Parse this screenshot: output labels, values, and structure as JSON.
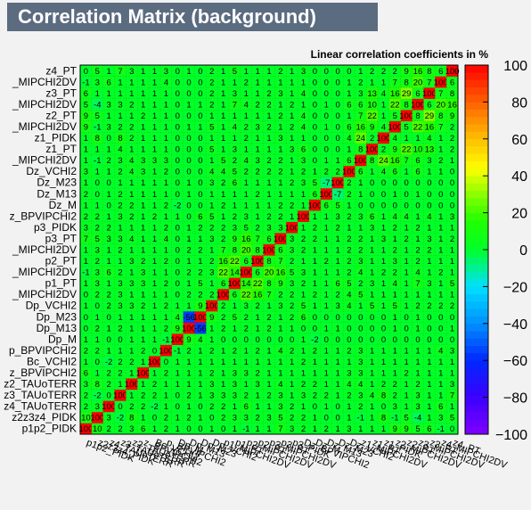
{
  "chart_data": {
    "type": "heatmap",
    "title": "Correlation Matrix (background)",
    "subtitle": "Linear correlation coefficients in %",
    "variables": [
      "p1p2_PIDK",
      "z2z3z4_PIDK",
      "z4_TAUoTERR",
      "z3_TAUoTERR",
      "z2_TAUoTERR",
      "z_BPVIPCHI2",
      "Bc_VCHI2",
      "p_BPVIPCHI2",
      "Dp_M",
      "Dp_M13",
      "Dp_M23",
      "Dp_VCHI2",
      "_MIPCHI2DV",
      "p1_PT",
      "_MIPCHI2DV",
      "p2_PT",
      "_MIPCHI2DV",
      "p3_PT",
      "p3_PIDK",
      "z_BPVIPCHI2",
      "Dz_M",
      "Dz_M13",
      "Dz_M23",
      "Dz_VCHI2",
      "_MIPCHI2DV",
      "z1_PT",
      "z1_PIDK",
      "_MIPCHI2DV",
      "z2_PT",
      "_MIPCHI2DV",
      "z3_PT",
      "_MIPCHI2DV",
      "z4_PT"
    ],
    "xlabels": [
      "p1p2_PIDK",
      "z2z3z4_PIDK",
      "z4_TAUoTERR",
      "z3_TAUoTERR",
      "z2_TAUoTERR",
      "z_BPVIPCHI2",
      "Bc_VCHI2",
      "p_BPVIPCHI2",
      "Dp_M",
      "Dp_M13",
      "Dp_M23",
      "Dp_VCHI2",
      "p1_MIPCHI2DV",
      "p1_PT",
      "p2_MIPCHI2DV",
      "p2_PT",
      "p3_MIPCHI2DV",
      "p3_PT",
      "p3_PIDK",
      "Dz_BPVIPCHI2",
      "Dz_M",
      "Dz_M13",
      "Dz_M23",
      "Dz_VCHI2",
      "z1_MIPCHI2DV",
      "z1_PT",
      "z1_PIDK",
      "z2_MIPCHI2DV",
      "z2_PT",
      "z3_MIPCHI2DV",
      "z3_PT",
      "z4_MIPCHI2DV",
      "z4_PT"
    ],
    "zlim": [
      -100,
      100
    ],
    "ztick_labels": [
      "100",
      "80",
      "60",
      "40",
      "20",
      "0",
      "−20",
      "−40",
      "−60",
      "−80",
      "−100"
    ],
    "matrix": [
      [
        100,
        10,
        2,
        2,
        3,
        6,
        1,
        2,
        1,
        0,
        0,
        1,
        0,
        1,
        -1,
        1,
        1,
        7,
        3,
        2,
        1,
        2,
        1,
        3,
        1,
        1,
        1,
        9,
        9,
        5,
        6,
        -1,
        0
      ],
      [
        10,
        100,
        3,
        -2,
        8,
        1,
        0,
        2,
        1,
        2,
        1,
        0,
        2,
        3,
        3,
        2,
        3,
        5,
        2,
        2,
        1,
        0,
        0,
        1,
        -1,
        1,
        8,
        -1,
        5,
        -4,
        1,
        3,
        5
      ],
      [
        2,
        3,
        100,
        0,
        2,
        2,
        -2,
        1,
        0,
        1,
        0,
        2,
        2,
        1,
        6,
        1,
        1,
        3,
        2,
        1,
        0,
        1,
        0,
        1,
        2,
        1,
        0,
        3,
        1,
        3,
        1,
        6,
        1
      ],
      [
        2,
        -2,
        0,
        100,
        1,
        2,
        2,
        1,
        0,
        2,
        1,
        3,
        3,
        3,
        2,
        1,
        2,
        3,
        1,
        3,
        2,
        2,
        1,
        2,
        3,
        4,
        8,
        2,
        1,
        3,
        1,
        1,
        7
      ],
      [
        3,
        8,
        2,
        1,
        100,
        1,
        2,
        1,
        1,
        1,
        1,
        3,
        1,
        3,
        1,
        3,
        1,
        4,
        1,
        2,
        2,
        1,
        1,
        4,
        4,
        1,
        2,
        2,
        1,
        2,
        1,
        1,
        3
      ],
      [
        6,
        1,
        2,
        2,
        1,
        100,
        1,
        2,
        1,
        1,
        1,
        2,
        1,
        3,
        3,
        2,
        1,
        1,
        1,
        1,
        1,
        1,
        1,
        3,
        3,
        1,
        1,
        1,
        2,
        1,
        1,
        1,
        1
      ],
      [
        1,
        0,
        -2,
        2,
        2,
        1,
        100,
        0,
        1,
        1,
        1,
        1,
        1,
        1,
        1,
        1,
        1,
        1,
        1,
        2,
        1,
        1,
        1,
        1,
        3,
        1,
        1,
        1,
        1,
        1,
        1,
        1,
        1
      ],
      [
        2,
        2,
        1,
        1,
        1,
        2,
        0,
        100,
        -1,
        2,
        1,
        2,
        1,
        2,
        1,
        2,
        1,
        4,
        2,
        1,
        2,
        1,
        1,
        2,
        3,
        1,
        1,
        1,
        1,
        1,
        1,
        4,
        3
      ],
      [
        1,
        1,
        0,
        0,
        1,
        1,
        1,
        -1,
        100,
        9,
        4,
        1,
        0,
        0,
        0,
        0,
        0,
        0,
        0,
        1,
        -2,
        0,
        0,
        0,
        0,
        0,
        0,
        0,
        0,
        0,
        0,
        0,
        0
      ],
      [
        0,
        2,
        1,
        2,
        1,
        1,
        1,
        2,
        9,
        100,
        -56,
        1,
        2,
        1,
        2,
        1,
        2,
        1,
        1,
        0,
        0,
        1,
        1,
        0,
        0,
        0,
        0,
        1,
        0,
        1,
        0,
        0,
        1
      ],
      [
        0,
        1,
        0,
        1,
        1,
        1,
        1,
        1,
        4,
        -56,
        100,
        9,
        2,
        5,
        2,
        1,
        2,
        1,
        2,
        6,
        0,
        0,
        0,
        0,
        0,
        0,
        0,
        1,
        0,
        1,
        0,
        0,
        0
      ],
      [
        1,
        0,
        2,
        3,
        3,
        2,
        1,
        2,
        1,
        1,
        9,
        100,
        2,
        1,
        3,
        2,
        1,
        3,
        2,
        5,
        1,
        1,
        3,
        4,
        1,
        5,
        1,
        5,
        1,
        2,
        2,
        2,
        2
      ],
      [
        0,
        2,
        2,
        3,
        1,
        1,
        1,
        1,
        0,
        2,
        2,
        2,
        100,
        6,
        22,
        16,
        7,
        2,
        2,
        1,
        2,
        1,
        2,
        4,
        5,
        1,
        1,
        1,
        1,
        1,
        1,
        1,
        1
      ],
      [
        1,
        3,
        1,
        3,
        3,
        3,
        1,
        2,
        0,
        1,
        5,
        1,
        6,
        100,
        14,
        22,
        8,
        9,
        3,
        2,
        1,
        1,
        6,
        5,
        2,
        3,
        1,
        4,
        1,
        7,
        3,
        1,
        5
      ],
      [
        -1,
        3,
        6,
        2,
        1,
        3,
        1,
        1,
        0,
        2,
        2,
        3,
        22,
        14,
        100,
        6,
        20,
        16,
        5,
        3,
        1,
        1,
        1,
        2,
        4,
        1,
        2,
        2,
        1,
        4,
        1,
        2,
        1
      ],
      [
        1,
        2,
        1,
        1,
        3,
        2,
        1,
        2,
        0,
        1,
        1,
        2,
        16,
        22,
        6,
        100,
        8,
        7,
        2,
        1,
        1,
        2,
        1,
        2,
        3,
        1,
        1,
        3,
        1,
        2,
        1,
        1,
        1
      ],
      [
        1,
        3,
        1,
        2,
        1,
        1,
        1,
        1,
        0,
        2,
        2,
        1,
        7,
        8,
        20,
        8,
        100,
        6,
        3,
        2,
        1,
        1,
        1,
        2,
        2,
        1,
        1,
        2,
        1,
        2,
        2,
        1,
        1
      ],
      [
        7,
        5,
        3,
        3,
        4,
        1,
        1,
        4,
        0,
        1,
        1,
        3,
        2,
        9,
        16,
        7,
        6,
        100,
        3,
        2,
        2,
        1,
        1,
        2,
        2,
        1,
        3,
        1,
        2,
        1,
        3,
        1,
        2
      ],
      [
        3,
        2,
        2,
        1,
        1,
        1,
        1,
        2,
        0,
        1,
        2,
        2,
        2,
        3,
        5,
        2,
        3,
        3,
        100,
        1,
        2,
        1,
        2,
        1,
        1,
        3,
        1,
        2,
        1,
        2,
        1,
        1,
        1
      ],
      [
        2,
        2,
        1,
        3,
        2,
        1,
        2,
        1,
        1,
        0,
        6,
        5,
        1,
        2,
        3,
        1,
        2,
        2,
        1,
        100,
        1,
        1,
        3,
        2,
        3,
        6,
        1,
        4,
        4,
        1,
        4,
        1,
        3
      ],
      [
        1,
        1,
        0,
        2,
        2,
        1,
        1,
        2,
        -2,
        0,
        0,
        1,
        2,
        1,
        1,
        1,
        1,
        2,
        2,
        1,
        100,
        6,
        5,
        1,
        0,
        0,
        0,
        0,
        0,
        0,
        0,
        0,
        0
      ],
      [
        2,
        0,
        1,
        2,
        1,
        1,
        1,
        1,
        0,
        1,
        0,
        1,
        1,
        1,
        1,
        2,
        1,
        1,
        1,
        1,
        6,
        100,
        -7,
        2,
        1,
        0,
        0,
        1,
        0,
        1,
        0,
        0,
        0
      ],
      [
        1,
        0,
        0,
        1,
        1,
        1,
        1,
        1,
        0,
        1,
        0,
        3,
        2,
        6,
        1,
        1,
        1,
        1,
        2,
        3,
        5,
        -7,
        100,
        2,
        1,
        0,
        0,
        0,
        0,
        0,
        0,
        0,
        0
      ],
      [
        3,
        1,
        1,
        2,
        4,
        3,
        1,
        2,
        0,
        0,
        0,
        4,
        4,
        5,
        2,
        2,
        2,
        2,
        1,
        2,
        1,
        2,
        2,
        100,
        6,
        1,
        4,
        6,
        1,
        6,
        1,
        1,
        0
      ],
      [
        1,
        -1,
        2,
        3,
        4,
        3,
        3,
        3,
        0,
        0,
        0,
        1,
        5,
        2,
        4,
        3,
        2,
        2,
        1,
        3,
        0,
        1,
        1,
        6,
        100,
        8,
        24,
        16,
        7,
        6,
        3,
        2,
        1
      ],
      [
        1,
        1,
        1,
        4,
        1,
        1,
        1,
        1,
        0,
        0,
        0,
        5,
        1,
        3,
        1,
        1,
        1,
        1,
        3,
        6,
        0,
        0,
        0,
        1,
        8,
        100,
        2,
        9,
        22,
        10,
        13,
        1,
        2
      ],
      [
        1,
        8,
        0,
        8,
        2,
        1,
        1,
        1,
        0,
        0,
        0,
        1,
        1,
        1,
        2,
        1,
        1,
        3,
        1,
        1,
        0,
        0,
        0,
        4,
        24,
        2,
        100,
        4,
        1,
        1,
        4,
        1,
        2
      ],
      [
        9,
        -1,
        3,
        2,
        2,
        1,
        1,
        1,
        0,
        1,
        1,
        5,
        1,
        4,
        2,
        3,
        2,
        1,
        2,
        4,
        0,
        1,
        0,
        6,
        16,
        9,
        4,
        100,
        5,
        22,
        16,
        7,
        2
      ],
      [
        9,
        5,
        1,
        1,
        1,
        2,
        1,
        1,
        0,
        0,
        0,
        1,
        1,
        1,
        1,
        1,
        1,
        2,
        1,
        4,
        0,
        0,
        0,
        1,
        7,
        22,
        1,
        5,
        100,
        8,
        29,
        8,
        9
      ],
      [
        5,
        -4,
        3,
        3,
        2,
        1,
        1,
        1,
        0,
        1,
        1,
        2,
        1,
        7,
        4,
        2,
        2,
        1,
        2,
        1,
        0,
        1,
        0,
        6,
        6,
        10,
        1,
        22,
        8,
        100,
        6,
        20,
        16
      ],
      [
        6,
        1,
        1,
        1,
        1,
        1,
        1,
        1,
        0,
        0,
        0,
        2,
        1,
        3,
        1,
        1,
        2,
        3,
        1,
        4,
        0,
        0,
        0,
        1,
        3,
        13,
        4,
        16,
        29,
        6,
        100,
        7,
        8
      ],
      [
        -1,
        3,
        6,
        1,
        1,
        1,
        1,
        4,
        0,
        0,
        0,
        2,
        1,
        1,
        2,
        1,
        1,
        1,
        1,
        1,
        0,
        0,
        0,
        1,
        2,
        1,
        1,
        7,
        8,
        20,
        7,
        100,
        6
      ],
      [
        0,
        5,
        1,
        7,
        3,
        1,
        1,
        3,
        0,
        1,
        0,
        2,
        1,
        5,
        1,
        1,
        1,
        2,
        1,
        3,
        0,
        0,
        0,
        0,
        1,
        2,
        2,
        2,
        9,
        16,
        8,
        6,
        100
      ]
    ]
  }
}
